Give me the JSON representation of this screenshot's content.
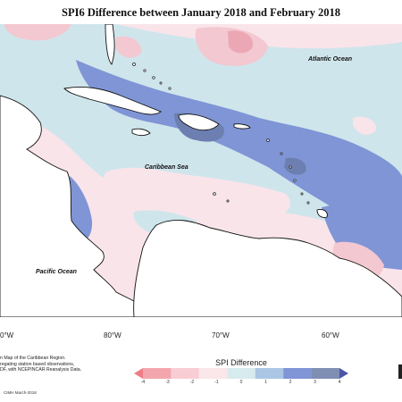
{
  "title": "SPI6 Difference between January 2018 and February 2018",
  "labels": {
    "atlantic": "Atlantic Ocean",
    "caribbean": "Caribbean Sea",
    "pacific": "Pacific Ocean"
  },
  "longitude_ticks": [
    "0°W",
    "80°W",
    "70°W",
    "60°W"
  ],
  "source_lines": [
    "n Map of the Caribbean Region.",
    "regating station based observations,",
    "DF, with NCEPINCAR Reanalysis Data."
  ],
  "credit": "CIMH March-2018",
  "legend": {
    "title": "SPI Difference",
    "ticks": [
      "-4",
      "-3",
      "-2",
      "-1",
      "0",
      "1",
      "2",
      "3",
      "4"
    ],
    "colors": [
      "#ef7d86",
      "#f3a6ae",
      "#f8cdd3",
      "#fbe6ea",
      "#d6ebee",
      "#aac6e4",
      "#7f95d6",
      "#7f8fb4",
      "#4e56a6"
    ]
  },
  "map_colors": {
    "slight_negative": "#f9e4ea",
    "moderate_negative": "#f3c8d0",
    "strong_negative": "#eba8b4",
    "slight_positive": "#cfe5ec",
    "moderate_positive": "#7f95d6",
    "strong_positive": "#6c7fb0",
    "land": "#ffffff"
  }
}
